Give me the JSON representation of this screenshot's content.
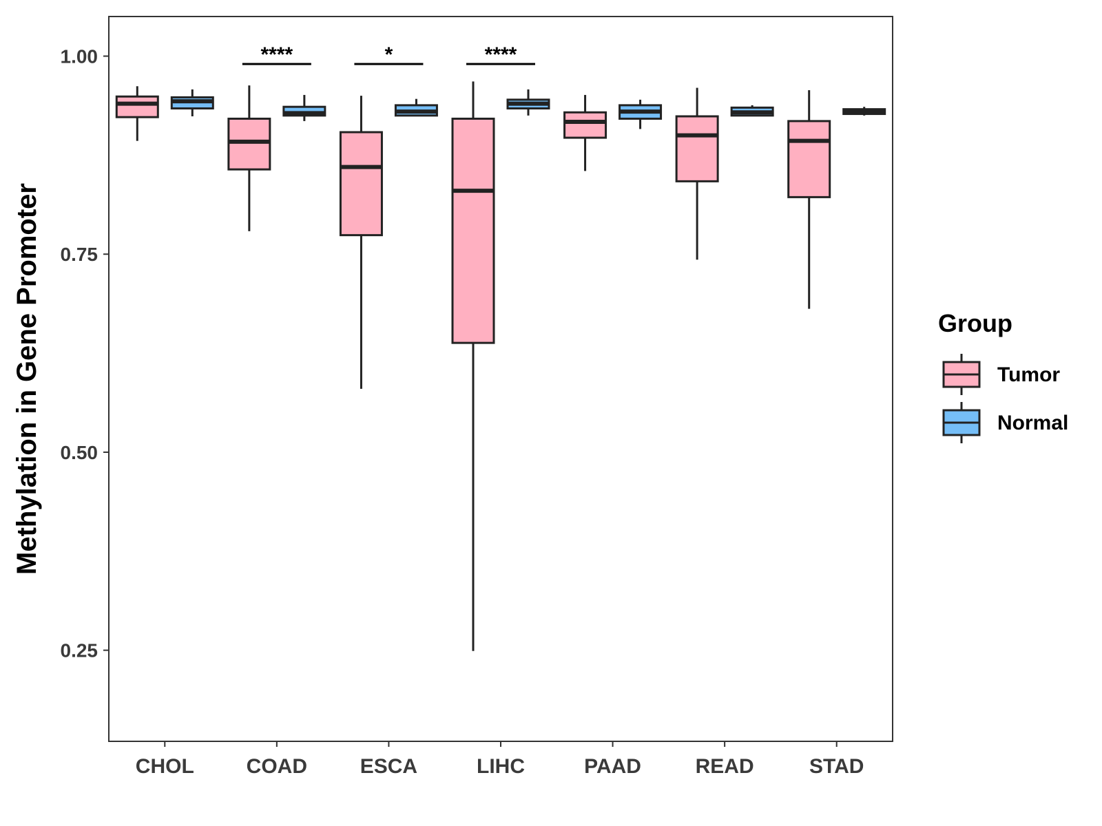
{
  "chart_data": {
    "type": "boxplot",
    "title": "",
    "xlabel": "",
    "ylabel": "Methylation in Gene Promoter",
    "ylim": [
      0.135,
      1.05
    ],
    "yticks": [
      0.25,
      0.5,
      0.75,
      1.0
    ],
    "ytick_labels": [
      "0.25",
      "0.50",
      "0.75",
      "1.00"
    ],
    "categories": [
      "CHOL",
      "COAD",
      "ESCA",
      "LIHC",
      "PAAD",
      "READ",
      "STAD"
    ],
    "legend": {
      "title": "Group",
      "placement": "right",
      "entries": [
        {
          "label": "Tumor",
          "color": "#FFB0C1"
        },
        {
          "label": "Normal",
          "color": "#75BEF7"
        }
      ]
    },
    "series": [
      {
        "name": "Tumor",
        "color": "#FFB0C1",
        "boxes": [
          {
            "category": "CHOL",
            "whisker_low": 0.893,
            "q1": 0.923,
            "median": 0.94,
            "q3": 0.949,
            "whisker_high": 0.962
          },
          {
            "category": "COAD",
            "whisker_low": 0.779,
            "q1": 0.857,
            "median": 0.892,
            "q3": 0.921,
            "whisker_high": 0.963
          },
          {
            "category": "ESCA",
            "whisker_low": 0.58,
            "q1": 0.774,
            "median": 0.86,
            "q3": 0.904,
            "whisker_high": 0.95
          },
          {
            "category": "LIHC",
            "whisker_low": 0.249,
            "q1": 0.638,
            "median": 0.83,
            "q3": 0.921,
            "whisker_high": 0.968
          },
          {
            "category": "PAAD",
            "whisker_low": 0.855,
            "q1": 0.897,
            "median": 0.917,
            "q3": 0.929,
            "whisker_high": 0.951
          },
          {
            "category": "READ",
            "whisker_low": 0.743,
            "q1": 0.842,
            "median": 0.9,
            "q3": 0.924,
            "whisker_high": 0.96
          },
          {
            "category": "STAD",
            "whisker_low": 0.681,
            "q1": 0.822,
            "median": 0.893,
            "q3": 0.918,
            "whisker_high": 0.957
          }
        ]
      },
      {
        "name": "Normal",
        "color": "#75BEF7",
        "boxes": [
          {
            "category": "CHOL",
            "whisker_low": 0.924,
            "q1": 0.934,
            "median": 0.943,
            "q3": 0.948,
            "whisker_high": 0.958
          },
          {
            "category": "COAD",
            "whisker_low": 0.918,
            "q1": 0.925,
            "median": 0.928,
            "q3": 0.936,
            "whisker_high": 0.951
          },
          {
            "category": "ESCA",
            "whisker_low": 0.924,
            "q1": 0.925,
            "median": 0.93,
            "q3": 0.938,
            "whisker_high": 0.946
          },
          {
            "category": "LIHC",
            "whisker_low": 0.925,
            "q1": 0.934,
            "median": 0.94,
            "q3": 0.945,
            "whisker_high": 0.958
          },
          {
            "category": "PAAD",
            "whisker_low": 0.908,
            "q1": 0.921,
            "median": 0.93,
            "q3": 0.938,
            "whisker_high": 0.945
          },
          {
            "category": "READ",
            "whisker_low": 0.924,
            "q1": 0.925,
            "median": 0.929,
            "q3": 0.935,
            "whisker_high": 0.938
          },
          {
            "category": "STAD",
            "whisker_low": 0.925,
            "q1": 0.927,
            "median": 0.93,
            "q3": 0.933,
            "whisker_high": 0.936
          }
        ]
      }
    ],
    "annotations": [
      {
        "category": "COAD",
        "label": "****",
        "y": 0.99
      },
      {
        "category": "ESCA",
        "label": "*",
        "y": 0.99
      },
      {
        "category": "LIHC",
        "label": "****",
        "y": 0.99
      }
    ],
    "grid": false
  }
}
